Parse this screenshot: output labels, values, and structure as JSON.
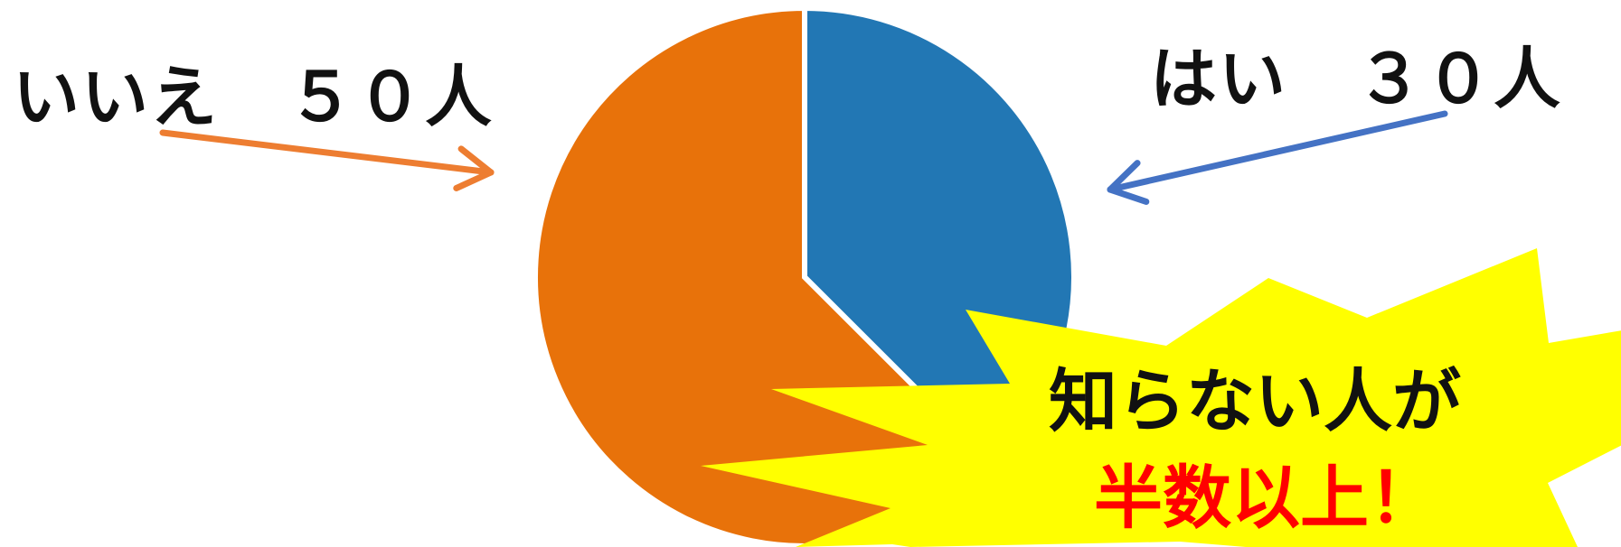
{
  "chart_data": {
    "type": "pie",
    "title": "",
    "slices": [
      {
        "label": "はい",
        "value": 30,
        "color": "#2277b4",
        "label_text": "はい　３０人",
        "arrow_color": "#4472c4"
      },
      {
        "label": "いいえ",
        "value": 50,
        "color": "#e8720a",
        "label_text": "いいえ　５０人",
        "arrow_color": "#ed7d31"
      }
    ],
    "start": "12 o'clock",
    "direction": "clockwise"
  },
  "callout": {
    "line1": "知らない人が",
    "line2": "半数以上！",
    "fill": "#ffff00",
    "line2_color": "#ff0000"
  }
}
